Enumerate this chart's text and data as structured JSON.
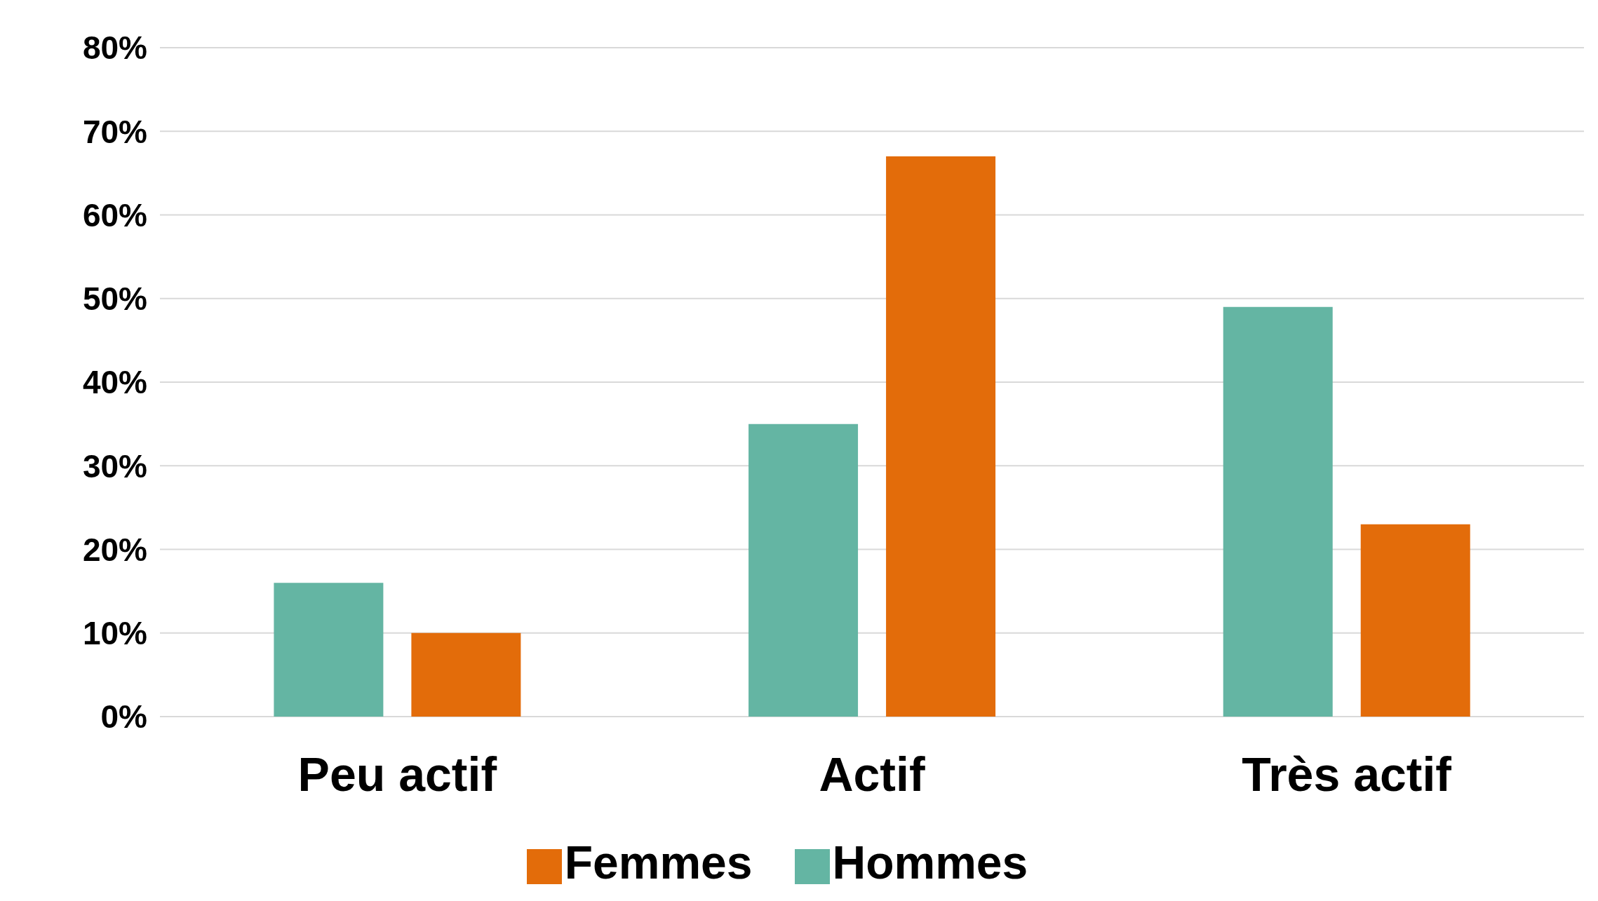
{
  "chart_data": {
    "type": "bar",
    "categories": [
      "Peu actif",
      "Actif",
      "Très actif"
    ],
    "series": [
      {
        "name": "Hommes",
        "color": "#64b5a3",
        "values": [
          16,
          35,
          49
        ]
      },
      {
        "name": "Femmes",
        "color": "#e36c0a",
        "values": [
          10,
          67,
          23
        ]
      }
    ],
    "ylim": [
      0,
      80
    ],
    "yticks": [
      {
        "value": 0,
        "label": "0%"
      },
      {
        "value": 10,
        "label": "10%"
      },
      {
        "value": 20,
        "label": "20%"
      },
      {
        "value": 30,
        "label": "30%"
      },
      {
        "value": 40,
        "label": "40%"
      },
      {
        "value": 50,
        "label": "50%"
      },
      {
        "value": 60,
        "label": "60%"
      },
      {
        "value": 70,
        "label": "70%"
      },
      {
        "value": 80,
        "label": "80%"
      }
    ],
    "grid": "y",
    "legend": "bottom"
  }
}
